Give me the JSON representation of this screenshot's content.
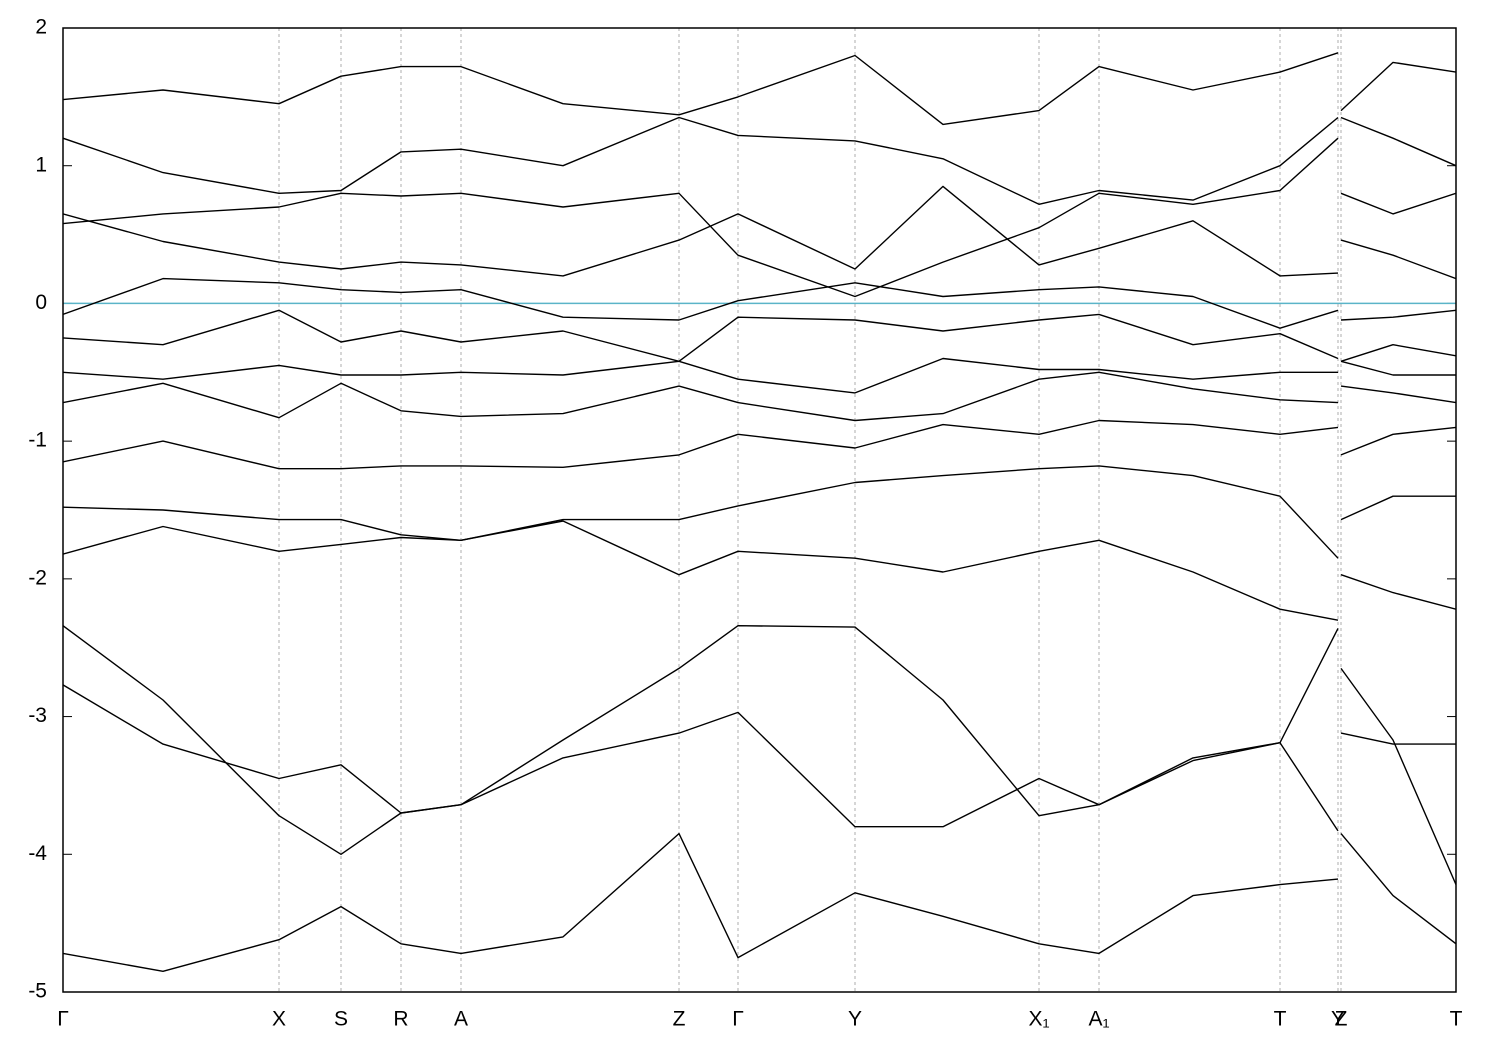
{
  "chart_data": {
    "type": "line",
    "x": [
      0,
      1.0,
      2.16,
      2.78,
      3.38,
      3.98,
      5.0,
      6.16,
      6.75,
      7.92,
      8.8,
      9.76,
      10.36,
      11.3,
      12.17,
      12.75,
      12.76,
      12.78,
      13.3,
      13.93
    ],
    "xlim": [
      0,
      13.93
    ],
    "xticks": [
      {
        "value": 0,
        "label": "Γ"
      },
      {
        "value": 2.16,
        "label": "X"
      },
      {
        "value": 2.78,
        "label": "S"
      },
      {
        "value": 3.38,
        "label": "R"
      },
      {
        "value": 3.98,
        "label": "A"
      },
      {
        "value": 6.16,
        "label": "Z"
      },
      {
        "value": 6.75,
        "label": "Γ"
      },
      {
        "value": 7.92,
        "label": "Y"
      },
      {
        "value": 9.76,
        "label": "X₁"
      },
      {
        "value": 10.36,
        "label": "A₁"
      },
      {
        "value": 12.17,
        "label": "T"
      },
      {
        "value": 12.75,
        "label": "Y"
      },
      {
        "value": 12.78,
        "label": "Z"
      },
      {
        "value": 13.93,
        "label": "T"
      }
    ],
    "ylim": [
      -5,
      2
    ],
    "yticks": [
      -5,
      -4,
      -3,
      -2,
      -1,
      0,
      1,
      2
    ],
    "grid": true,
    "color": "#000000",
    "fermi_level": 0,
    "fermi_color": "#5ab4c8",
    "series": [
      {
        "values": [
          -2.34,
          -2.88,
          -3.72,
          -4.0,
          -3.7,
          -3.64,
          -3.17,
          -2.65,
          -2.34,
          -2.35,
          -2.88,
          -3.72,
          -3.64,
          -3.32,
          -3.19,
          -2.36,
          null,
          -2.65,
          -3.17,
          -4.22
        ]
      },
      {
        "values": [
          -2.77,
          -3.2,
          -3.45,
          -3.35,
          -3.7,
          -3.64,
          -3.3,
          -3.12,
          -2.97,
          -3.8,
          -3.8,
          -3.45,
          -3.64,
          -3.3,
          -3.19,
          -3.83,
          null,
          -3.12,
          -3.2,
          -3.2
        ]
      },
      {
        "values": [
          -4.72,
          -4.85,
          -4.62,
          -4.38,
          -4.65,
          -4.72,
          -4.6,
          -3.85,
          -4.75,
          -4.28,
          -4.45,
          -4.65,
          -4.72,
          -4.3,
          -4.22,
          -4.18,
          null,
          -3.85,
          -4.3,
          -4.65
        ]
      },
      {
        "values": [
          -1.82,
          -1.62,
          -1.8,
          -1.75,
          -1.7,
          -1.72,
          -1.58,
          -1.97,
          -1.8,
          -1.85,
          -1.95,
          -1.8,
          -1.72,
          -1.95,
          -2.22,
          -2.3,
          null,
          -1.97,
          -2.1,
          -2.22
        ]
      },
      {
        "values": [
          -1.48,
          -1.5,
          -1.57,
          -1.57,
          -1.68,
          -1.72,
          -1.57,
          -1.57,
          -1.47,
          -1.3,
          -1.25,
          -1.2,
          -1.18,
          -1.25,
          -1.4,
          -1.85,
          null,
          -1.57,
          -1.4,
          -1.4
        ]
      },
      {
        "values": [
          -1.15,
          -1.0,
          -1.2,
          -1.2,
          -1.18,
          -1.18,
          -1.19,
          -1.1,
          -0.95,
          -1.05,
          -0.88,
          -0.95,
          -0.85,
          -0.88,
          -0.95,
          -0.9,
          null,
          -1.1,
          -0.95,
          -0.9
        ]
      },
      {
        "values": [
          -0.72,
          -0.58,
          -0.83,
          -0.58,
          -0.78,
          -0.82,
          -0.8,
          -0.6,
          -0.72,
          -0.85,
          -0.8,
          -0.55,
          -0.5,
          -0.62,
          -0.7,
          -0.72,
          null,
          -0.6,
          -0.65,
          -0.72
        ]
      },
      {
        "values": [
          -0.5,
          -0.55,
          -0.45,
          -0.52,
          -0.52,
          -0.5,
          -0.52,
          -0.42,
          -0.55,
          -0.65,
          -0.4,
          -0.48,
          -0.48,
          -0.55,
          -0.5,
          -0.5,
          null,
          -0.42,
          -0.52,
          -0.52
        ]
      },
      {
        "values": [
          -0.25,
          -0.3,
          -0.05,
          -0.28,
          -0.2,
          -0.28,
          -0.2,
          -0.42,
          -0.1,
          -0.12,
          -0.2,
          -0.12,
          -0.08,
          -0.3,
          -0.22,
          -0.4,
          null,
          -0.42,
          -0.3,
          -0.38
        ]
      },
      {
        "values": [
          -0.08,
          0.18,
          0.15,
          0.1,
          0.08,
          0.1,
          -0.1,
          -0.12,
          0.02,
          0.15,
          0.05,
          0.1,
          0.12,
          0.05,
          -0.18,
          -0.05,
          null,
          -0.12,
          -0.1,
          -0.05
        ]
      },
      {
        "values": [
          0.65,
          0.45,
          0.3,
          0.25,
          0.3,
          0.28,
          0.2,
          0.46,
          0.65,
          0.25,
          0.85,
          0.28,
          0.4,
          0.6,
          0.2,
          0.22,
          null,
          0.46,
          0.35,
          0.18
        ]
      },
      {
        "values": [
          0.58,
          0.65,
          0.7,
          0.8,
          0.78,
          0.8,
          0.7,
          0.8,
          0.35,
          0.05,
          0.3,
          0.55,
          0.8,
          0.72,
          0.82,
          1.2,
          null,
          0.8,
          0.65,
          0.8
        ]
      },
      {
        "values": [
          1.2,
          0.95,
          0.8,
          0.82,
          1.1,
          1.12,
          1.0,
          1.35,
          1.22,
          1.18,
          1.05,
          0.72,
          0.82,
          0.75,
          1.0,
          1.35,
          null,
          1.35,
          1.2,
          1.0
        ]
      },
      {
        "values": [
          1.48,
          1.55,
          1.45,
          1.65,
          1.72,
          1.72,
          1.45,
          1.37,
          1.5,
          1.8,
          1.3,
          1.4,
          1.72,
          1.55,
          1.68,
          1.82,
          null,
          1.4,
          1.75,
          1.68
        ]
      }
    ]
  }
}
